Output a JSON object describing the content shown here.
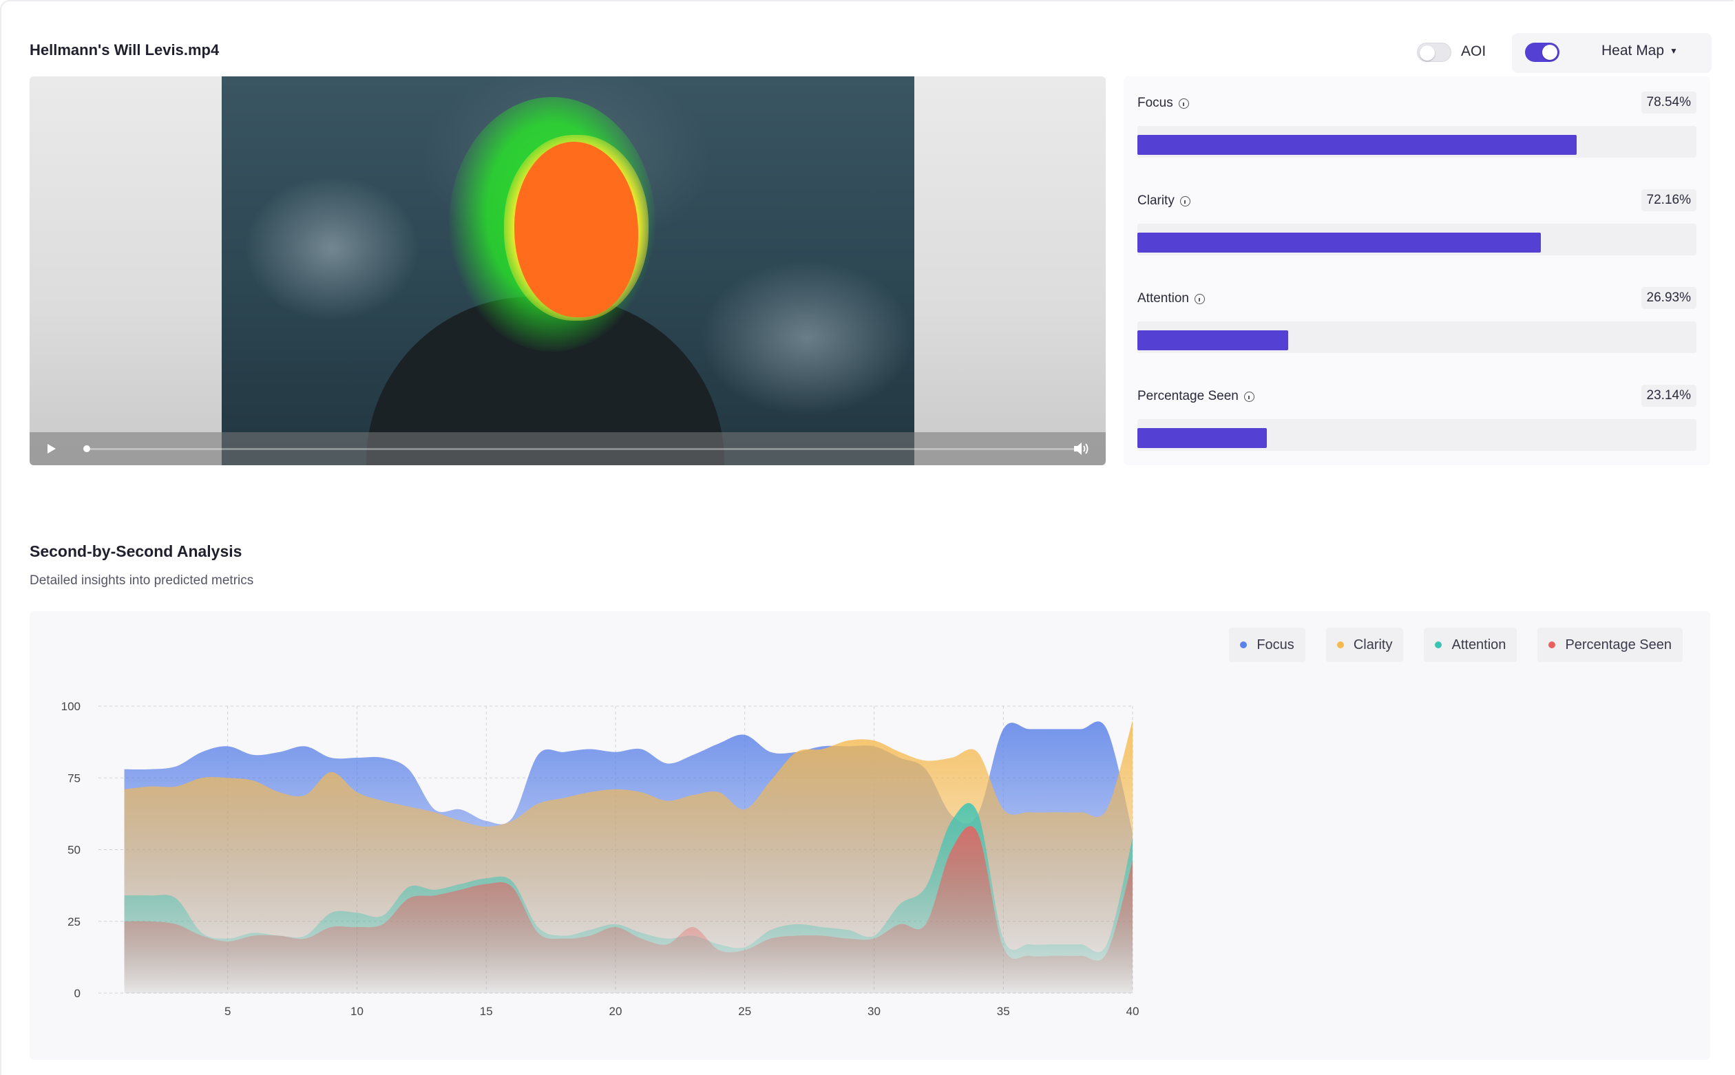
{
  "header": {
    "file_name": "Hellmann's Will Levis.mp4",
    "aoi_label": "AOI",
    "aoi_enabled": false,
    "heatmap_enabled": true,
    "view_mode": "Heat Map"
  },
  "metrics": [
    {
      "label": "Focus",
      "value_text": "78.54%",
      "value": 78.54
    },
    {
      "label": "Clarity",
      "value_text": "72.16%",
      "value": 72.16
    },
    {
      "label": "Attention",
      "value_text": "26.93%",
      "value": 26.93
    },
    {
      "label": "Percentage Seen",
      "value_text": "23.14%",
      "value": 23.14
    }
  ],
  "analysis": {
    "title": "Second-by-Second Analysis",
    "subtitle": "Detailed insights into predicted metrics"
  },
  "chart_data": {
    "type": "area",
    "title": "",
    "xlabel": "",
    "ylabel": "",
    "xlim": [
      0,
      40
    ],
    "ylim": [
      0,
      100
    ],
    "x_ticks": [
      5,
      10,
      15,
      20,
      25,
      30,
      35,
      40
    ],
    "y_ticks": [
      0,
      25,
      50,
      75,
      100
    ],
    "grid": true,
    "legend_position": "top-right",
    "x": [
      1,
      2,
      3,
      4,
      5,
      6,
      7,
      8,
      9,
      10,
      11,
      12,
      13,
      14,
      15,
      16,
      17,
      18,
      19,
      20,
      21,
      22,
      23,
      24,
      25,
      26,
      27,
      28,
      29,
      30,
      31,
      32,
      33,
      34,
      35,
      36,
      37,
      38,
      39,
      40
    ],
    "series": [
      {
        "name": "Focus",
        "color": "#5b82e8",
        "values": [
          78,
          78,
          79,
          84,
          86,
          83,
          84,
          86,
          82,
          82,
          82,
          78,
          64,
          64,
          60,
          61,
          83,
          84,
          85,
          84,
          85,
          80,
          83,
          87,
          90,
          84,
          84,
          86,
          86,
          86,
          82,
          78,
          62,
          62,
          92,
          92,
          92,
          92,
          92,
          56
        ]
      },
      {
        "name": "Clarity",
        "color": "#f5b94e",
        "values": [
          71,
          72,
          72,
          75,
          75,
          74,
          70,
          69,
          77,
          70,
          67,
          65,
          63,
          60,
          58,
          60,
          66,
          68,
          70,
          71,
          70,
          67,
          69,
          70,
          64,
          74,
          84,
          85,
          88,
          88,
          84,
          81,
          82,
          84,
          64,
          63,
          63,
          63,
          64,
          95
        ]
      },
      {
        "name": "Attention",
        "color": "#3bc4b4",
        "values": [
          34,
          34,
          33,
          21,
          19,
          21,
          20,
          20,
          28,
          28,
          27,
          37,
          36,
          38,
          40,
          39,
          23,
          20,
          22,
          24,
          21,
          19,
          20,
          17,
          16,
          22,
          24,
          23,
          22,
          20,
          31,
          37,
          60,
          63,
          19,
          17,
          17,
          17,
          17,
          54
        ]
      },
      {
        "name": "Percentage Seen",
        "color": "#e8605e",
        "values": [
          25,
          25,
          24,
          20,
          18,
          20,
          20,
          19,
          23,
          23,
          24,
          33,
          34,
          36,
          38,
          37,
          21,
          19,
          20,
          23,
          19,
          17,
          23,
          15,
          15,
          19,
          20,
          20,
          19,
          19,
          24,
          24,
          50,
          56,
          16,
          13,
          13,
          13,
          14,
          46
        ]
      }
    ]
  }
}
